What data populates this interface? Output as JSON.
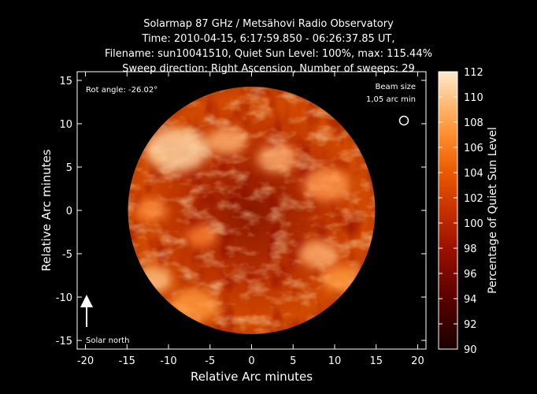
{
  "title_lines": [
    "Solarmap 87 GHz / Metsähovi Radio Observatory",
    "Time: 2010-04-15,  6:17:59.850 - 06:26:37.85 UT,",
    "Filename: sun10041510, Quiet Sun Level: 100%, max: 115.44%",
    "Sweep direction: Right Ascension, Number of sweeps: 29"
  ],
  "chart_data": {
    "type": "heatmap",
    "title": "Solarmap 87 GHz / Metsähovi Radio Observatory",
    "xlabel": "Relative Arc minutes",
    "ylabel": "Relative Arc minutes",
    "xlim": [
      -21,
      21
    ],
    "ylim": [
      -16,
      16
    ],
    "x_ticks": [
      -20,
      -15,
      -10,
      -5,
      0,
      5,
      10,
      15,
      20
    ],
    "y_ticks": [
      -15,
      -10,
      -5,
      0,
      5,
      10,
      15
    ],
    "colorbar": {
      "label": "Percentage of Quiet Sun Level",
      "range": [
        90,
        112
      ],
      "ticks": [
        90,
        92,
        94,
        96,
        98,
        100,
        102,
        104,
        106,
        108,
        110,
        112
      ]
    },
    "solar_disk": {
      "center": [
        0,
        0
      ],
      "radius_arcmin": 16
    },
    "max_percent": 115.44,
    "quiet_sun_level_percent": 100
  },
  "annotations": {
    "rot_angle": "Rot angle: -26.02°",
    "beam_size_line1": "Beam size",
    "beam_size_line2": "1,05 arc min",
    "solar_north": "Solar north"
  },
  "colors": {
    "background": "#000000",
    "low": "#2a0000",
    "mid": "#c03000",
    "high": "#ffe6c8"
  }
}
